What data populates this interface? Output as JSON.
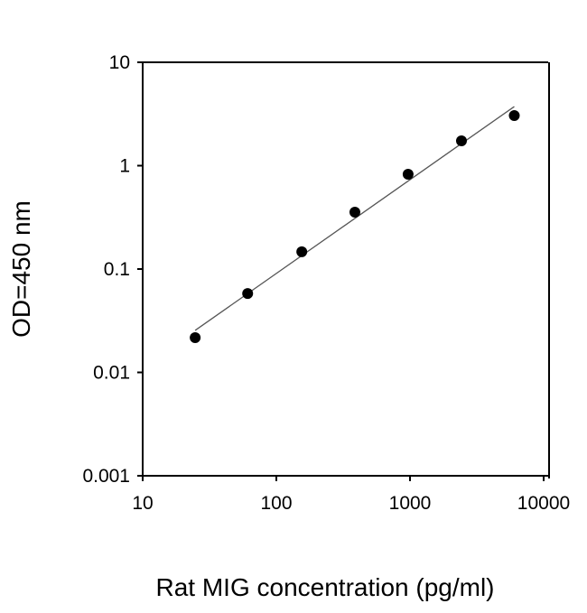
{
  "chart_data": {
    "type": "scatter",
    "title": "",
    "xlabel": "Rat MIG concentration (pg/ml)",
    "ylabel": "OD=450 nm",
    "xscale": "log",
    "yscale": "log",
    "xlim": [
      10,
      10000
    ],
    "ylim": [
      0.001,
      10
    ],
    "xticks": [
      10,
      100,
      1000,
      10000
    ],
    "xtick_labels": [
      "10",
      "100",
      "1000",
      "10000"
    ],
    "yticks": [
      0.001,
      0.01,
      0.1,
      1,
      10
    ],
    "ytick_labels": [
      "0.001",
      "0.01",
      "0.1",
      "1",
      "10"
    ],
    "grid": false,
    "series": [
      {
        "x": [
          24.7,
          61,
          155,
          387,
          968,
          2427,
          6030
        ],
        "y": [
          0.0217,
          0.058,
          0.147,
          0.355,
          0.826,
          1.74,
          3.05
        ],
        "marker": "circle",
        "color": "#000000"
      }
    ],
    "fit_line": {
      "x": [
        24.7,
        6030
      ],
      "y": [
        0.0255,
        3.73
      ],
      "color": "#555555"
    }
  }
}
